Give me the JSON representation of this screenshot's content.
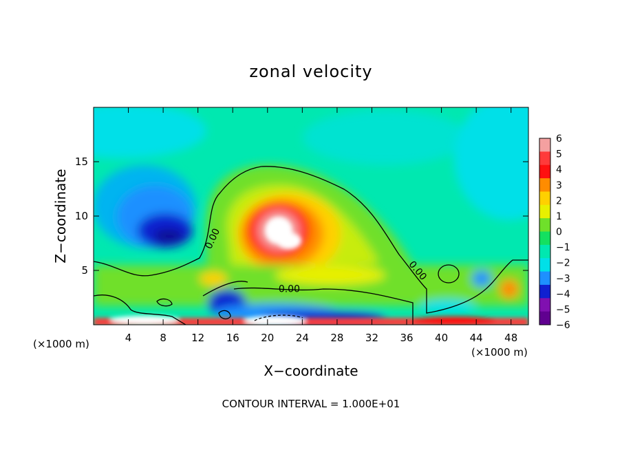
{
  "chart_data": {
    "type": "heatmap",
    "title": "zonal velocity",
    "xlabel": "X−coordinate",
    "ylabel": "Z−coordinate",
    "x_unit_left": "(×1000 m)",
    "x_unit_right": "(×1000 m)",
    "xlim": [
      0,
      50
    ],
    "ylim": [
      0,
      20
    ],
    "x_ticks": [
      4,
      8,
      12,
      16,
      20,
      24,
      28,
      32,
      36,
      40,
      44,
      48
    ],
    "y_ticks": [
      5,
      10,
      15
    ],
    "colorbar": {
      "levels": [
        6,
        5,
        4,
        3,
        2,
        1,
        0,
        -1,
        -2,
        -3,
        -4,
        -5,
        -6
      ],
      "labels": [
        "6",
        "5",
        "4",
        "3",
        "2",
        "1",
        "0",
        "−1",
        "−2",
        "−3",
        "−4",
        "−5",
        "−6"
      ],
      "colors": [
        "#f4a0a0",
        "#ff3a3a",
        "#ff1010",
        "#ff8c00",
        "#ffd000",
        "#e8f000",
        "#6fe02a",
        "#14e060",
        "#00e8b0",
        "#00e0e8",
        "#1e90ff",
        "#1020d0",
        "#8010b0",
        "#600090"
      ]
    },
    "contour_labels": [
      {
        "text": "0.00",
        "x": 14,
        "y": 7.8
      },
      {
        "text": "0.00",
        "x": 22.5,
        "y": 3
      },
      {
        "text": "0.00",
        "x": 37,
        "y": 4.8
      }
    ],
    "footer": "CONTOUR INTERVAL = 1.000E+01"
  }
}
